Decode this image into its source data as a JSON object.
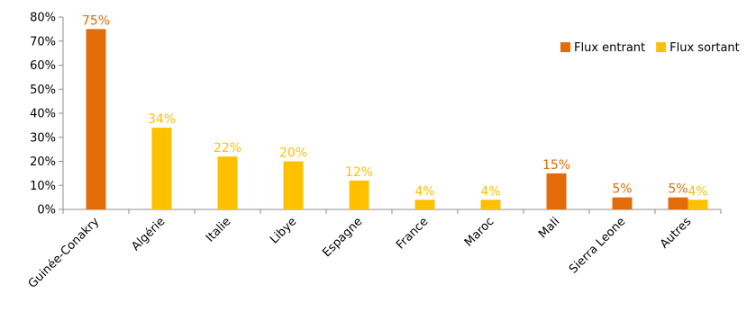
{
  "chart_data": {
    "type": "bar",
    "categories": [
      "Guinée-Conakry",
      "Algérie",
      "Italie",
      "Libye",
      "Espagne",
      "France",
      "Maroc",
      "Mali",
      "Sierra Leone",
      "Autres"
    ],
    "series": [
      {
        "name": "Flux entrant",
        "color": "#E36C09",
        "values": [
          75,
          null,
          null,
          null,
          null,
          null,
          null,
          15,
          5,
          5
        ]
      },
      {
        "name": "Flux sortant",
        "color": "#FFC000",
        "values": [
          null,
          34,
          22,
          20,
          12,
          4,
          4,
          null,
          null,
          4
        ]
      }
    ],
    "y_ticks": [
      "0%",
      "10%",
      "20%",
      "30%",
      "40%",
      "50%",
      "60%",
      "70%",
      "80%"
    ],
    "ylim": [
      0,
      80
    ],
    "y_unit": "%",
    "grid": false,
    "legend_position": "top-right"
  }
}
